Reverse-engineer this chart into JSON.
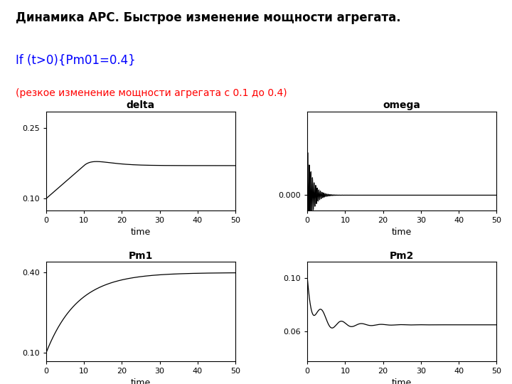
{
  "title_line1": "Динамика АРС. Быстрое изменение мощности агрегата.",
  "title_line2": "If (t>0){Pm01=0.4}",
  "subtitle": "(резкое изменение мощности агрегата с 0.1 до 0.4)",
  "subtitle_color": "red",
  "background_color": "white",
  "line_color": "black",
  "title_fontsize": 12,
  "subtitle_fontsize": 10,
  "axis_label_fontsize": 9,
  "tick_fontsize": 8,
  "xticks": [
    0,
    10,
    20,
    30,
    40,
    50
  ],
  "delta_yticks": [
    0.1,
    0.25
  ],
  "delta_ylim": [
    0.075,
    0.285
  ],
  "omega_yticks": [
    0.0
  ],
  "omega_ylim": [
    -0.004,
    0.022
  ],
  "pm1_yticks": [
    0.1,
    0.4
  ],
  "pm1_ylim": [
    0.07,
    0.44
  ],
  "pm2_yticks": [
    0.06,
    0.1
  ],
  "pm2_ylim": [
    0.038,
    0.112
  ]
}
